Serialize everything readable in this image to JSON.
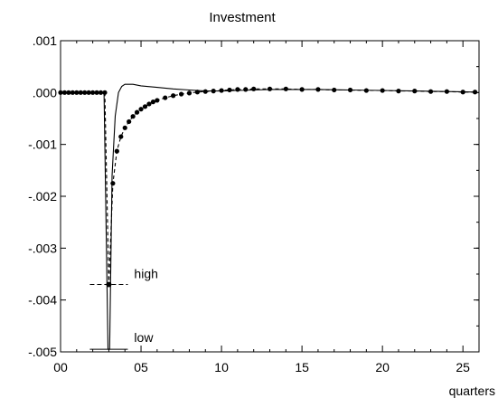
{
  "chart_data": {
    "type": "line",
    "title": "Investment",
    "xlabel": "quarters",
    "ylabel": "",
    "xlim": [
      0,
      26
    ],
    "ylim": [
      -0.005,
      0.001
    ],
    "x_ticks": [
      0,
      5,
      10,
      15,
      20,
      25
    ],
    "x_tick_labels": [
      "00",
      "05",
      "10",
      "15",
      "20",
      "25"
    ],
    "y_ticks": [
      0.001,
      0.0,
      -0.001,
      -0.002,
      -0.003,
      -0.004,
      -0.005
    ],
    "y_tick_labels": [
      ".001",
      ".000",
      "-.001",
      "-.002",
      "-.003",
      "-.004",
      "-.005"
    ],
    "grid": false,
    "legend": "none",
    "series": [
      {
        "style": "dashed-with-dots",
        "x": [
          0,
          0.25,
          0.5,
          0.75,
          1,
          1.25,
          1.5,
          1.75,
          2,
          2.25,
          2.5,
          2.75,
          3,
          3.25,
          3.5,
          3.75,
          4,
          4.25,
          4.5,
          4.75,
          5,
          5.25,
          5.5,
          5.75,
          6,
          6.5,
          7,
          7.5,
          8,
          8.5,
          9,
          9.5,
          10,
          10.5,
          11,
          11.5,
          12,
          13,
          14,
          15,
          16,
          17,
          18,
          19,
          20,
          21,
          22,
          23,
          24,
          25,
          25.75
        ],
        "y": [
          0,
          0,
          0,
          0,
          0,
          0,
          0,
          0,
          0,
          0,
          0,
          0,
          -0.0037,
          -0.00175,
          -0.00113,
          -0.00085,
          -0.00068,
          -0.00056,
          -0.00046,
          -0.00038,
          -0.00032,
          -0.00027,
          -0.00022,
          -0.00018,
          -0.00015,
          -0.0001,
          -6e-05,
          -3e-05,
          -1e-05,
          1e-05,
          2e-05,
          3e-05,
          4e-05,
          5e-05,
          6e-05,
          6e-05,
          7e-05,
          7e-05,
          7e-05,
          6e-05,
          6e-05,
          5e-05,
          5e-05,
          4e-05,
          4e-05,
          3e-05,
          3e-05,
          2e-05,
          2e-05,
          1e-05,
          1e-05
        ]
      },
      {
        "style": "solid",
        "x": [
          0,
          2.7,
          2.95,
          3.05,
          3.2,
          3.4,
          3.6,
          3.8,
          4,
          4.5,
          5,
          6,
          7,
          8,
          9,
          10,
          11,
          12,
          13,
          14,
          16,
          18,
          20,
          22,
          24,
          25.75
        ],
        "y": [
          0,
          0,
          -0.00495,
          -0.00495,
          -0.0016,
          -0.00045,
          0.0,
          0.00012,
          0.00016,
          0.00016,
          0.00013,
          0.0001,
          7e-05,
          5e-05,
          3e-05,
          3e-05,
          4e-05,
          5e-05,
          6e-05,
          6e-05,
          6e-05,
          5e-05,
          4e-05,
          3e-05,
          2e-05,
          1e-05
        ]
      }
    ],
    "annotations": [
      {
        "text": "high",
        "x": 3,
        "y": -0.0037
      },
      {
        "text": "low",
        "x": 3,
        "y": -0.00495
      }
    ]
  }
}
